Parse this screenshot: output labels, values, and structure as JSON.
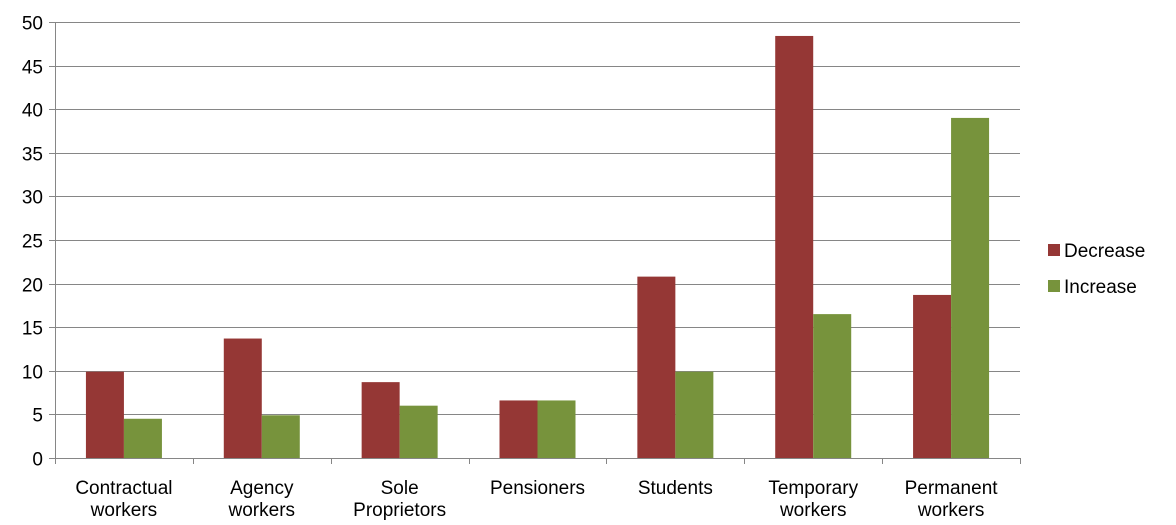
{
  "chart_data": {
    "type": "bar",
    "categories": [
      [
        "Contractual",
        "workers"
      ],
      [
        "Agency",
        "workers"
      ],
      [
        "Sole",
        "Proprietors"
      ],
      [
        "Pensioners"
      ],
      [
        "Students"
      ],
      [
        "Temporary",
        "workers"
      ],
      [
        "Permanent",
        "workers"
      ]
    ],
    "series": [
      {
        "name": "Decrease",
        "color": "#953735",
        "values": [
          9.9,
          13.7,
          8.7,
          6.6,
          20.8,
          48.4,
          18.7
        ]
      },
      {
        "name": "Increase",
        "color": "#77933C",
        "values": [
          4.5,
          4.9,
          6.0,
          6.6,
          9.9,
          16.5,
          39.0
        ]
      }
    ],
    "ylim": [
      0,
      50
    ],
    "yticks": [
      0,
      5,
      10,
      15,
      20,
      25,
      30,
      35,
      40,
      45,
      50
    ],
    "grid": true,
    "legend": "right"
  }
}
